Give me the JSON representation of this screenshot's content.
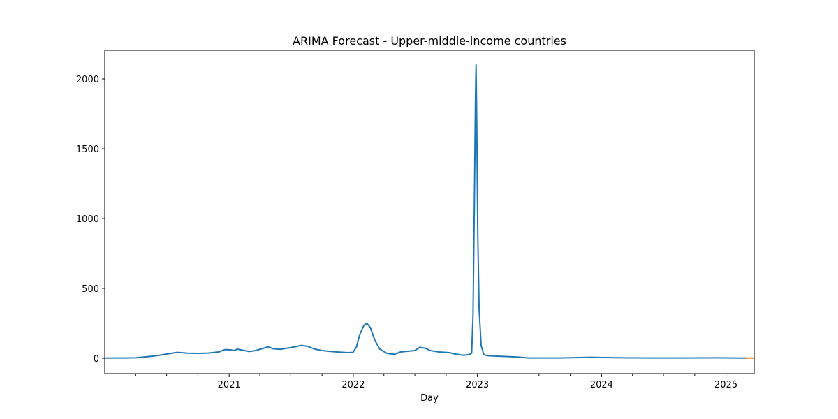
{
  "chart_data": {
    "type": "line",
    "title": "ARIMA Forecast - Upper-middle-income countries",
    "xlabel": "Day",
    "ylabel": "",
    "xlim": [
      "2020-01-01",
      "2025-03-25"
    ],
    "ylim": [
      -110,
      2205
    ],
    "x_major_ticks": [
      {
        "date": "2021-01-01",
        "label": "2021"
      },
      {
        "date": "2022-01-01",
        "label": "2022"
      },
      {
        "date": "2023-01-01",
        "label": "2023"
      },
      {
        "date": "2024-01-01",
        "label": "2024"
      },
      {
        "date": "2025-01-01",
        "label": "2025"
      }
    ],
    "x_minor_ticks": [
      "2020-04-01",
      "2020-07-01",
      "2020-10-01",
      "2021-04-01",
      "2021-07-01",
      "2021-10-01",
      "2022-04-01",
      "2022-07-01",
      "2022-10-01",
      "2023-04-01",
      "2023-07-01",
      "2023-10-01",
      "2024-04-01",
      "2024-07-01",
      "2024-10-01"
    ],
    "y_ticks": [
      0,
      500,
      1000,
      1500,
      2000
    ],
    "grid": false,
    "legend": "none",
    "series": [
      {
        "color": "#1f77b4",
        "points": [
          [
            "2020-01-01",
            1
          ],
          [
            "2020-02-01",
            2
          ],
          [
            "2020-03-01",
            2
          ],
          [
            "2020-04-01",
            3
          ],
          [
            "2020-05-01",
            10
          ],
          [
            "2020-06-01",
            18
          ],
          [
            "2020-07-01",
            30
          ],
          [
            "2020-08-01",
            42
          ],
          [
            "2020-09-01",
            36
          ],
          [
            "2020-10-01",
            35
          ],
          [
            "2020-11-01",
            37
          ],
          [
            "2020-12-01",
            45
          ],
          [
            "2020-12-20",
            62
          ],
          [
            "2021-01-05",
            60
          ],
          [
            "2021-01-15",
            55
          ],
          [
            "2021-01-25",
            65
          ],
          [
            "2021-02-15",
            55
          ],
          [
            "2021-03-01",
            48
          ],
          [
            "2021-03-20",
            55
          ],
          [
            "2021-04-10",
            70
          ],
          [
            "2021-04-25",
            82
          ],
          [
            "2021-05-10",
            68
          ],
          [
            "2021-06-01",
            64
          ],
          [
            "2021-06-20",
            72
          ],
          [
            "2021-07-10",
            80
          ],
          [
            "2021-08-01",
            92
          ],
          [
            "2021-08-20",
            85
          ],
          [
            "2021-09-10",
            65
          ],
          [
            "2021-10-01",
            55
          ],
          [
            "2021-10-20",
            50
          ],
          [
            "2021-11-15",
            45
          ],
          [
            "2021-12-15",
            40
          ],
          [
            "2021-12-31",
            42
          ],
          [
            "2022-01-10",
            80
          ],
          [
            "2022-01-20",
            170
          ],
          [
            "2022-02-01",
            235
          ],
          [
            "2022-02-10",
            250
          ],
          [
            "2022-02-20",
            220
          ],
          [
            "2022-03-05",
            130
          ],
          [
            "2022-03-20",
            65
          ],
          [
            "2022-04-10",
            35
          ],
          [
            "2022-05-01",
            28
          ],
          [
            "2022-05-20",
            45
          ],
          [
            "2022-06-10",
            50
          ],
          [
            "2022-07-01",
            55
          ],
          [
            "2022-07-15",
            78
          ],
          [
            "2022-08-01",
            72
          ],
          [
            "2022-08-15",
            55
          ],
          [
            "2022-09-10",
            45
          ],
          [
            "2022-10-10",
            40
          ],
          [
            "2022-11-01",
            28
          ],
          [
            "2022-11-20",
            22
          ],
          [
            "2022-12-05",
            25
          ],
          [
            "2022-12-15",
            35
          ],
          [
            "2022-12-19",
            300
          ],
          [
            "2022-12-23",
            1100
          ],
          [
            "2022-12-26",
            1800
          ],
          [
            "2022-12-28",
            2100
          ],
          [
            "2022-12-30",
            1700
          ],
          [
            "2023-01-02",
            900
          ],
          [
            "2023-01-06",
            350
          ],
          [
            "2023-01-12",
            90
          ],
          [
            "2023-01-20",
            25
          ],
          [
            "2023-02-01",
            18
          ],
          [
            "2023-03-01",
            15
          ],
          [
            "2023-04-01",
            12
          ],
          [
            "2023-05-01",
            8
          ],
          [
            "2023-06-01",
            2
          ],
          [
            "2023-07-01",
            2
          ],
          [
            "2023-09-01",
            2
          ],
          [
            "2023-11-01",
            5
          ],
          [
            "2023-12-01",
            7
          ],
          [
            "2024-01-01",
            5
          ],
          [
            "2024-03-01",
            3
          ],
          [
            "2024-06-01",
            2
          ],
          [
            "2024-09-01",
            2
          ],
          [
            "2024-12-01",
            3
          ],
          [
            "2025-02-01",
            2
          ],
          [
            "2025-03-01",
            1
          ]
        ]
      },
      {
        "color": "#ff7f0e",
        "points": [
          [
            "2025-03-01",
            1
          ],
          [
            "2025-03-25",
            1
          ]
        ]
      }
    ]
  }
}
